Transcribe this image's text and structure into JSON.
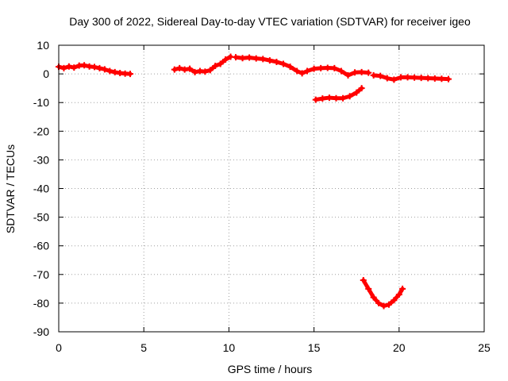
{
  "chart_data": {
    "type": "scatter",
    "title": "Day 300 of 2022, Sidereal Day-to-day VTEC variation (SDTVAR) for receiver igeo",
    "xlabel": "GPS time / hours",
    "ylabel": "SDTVAR / TECUs",
    "xlim": [
      0,
      25
    ],
    "ylim": [
      -90,
      10
    ],
    "xticks": [
      0,
      5,
      10,
      15,
      20,
      25
    ],
    "yticks": [
      10,
      0,
      -10,
      -20,
      -30,
      -40,
      -50,
      -60,
      -70,
      -80,
      -90
    ],
    "grid": true,
    "marker": "+",
    "series": [
      {
        "name": "SDTVAR",
        "color": "#ff0000",
        "segments": [
          {
            "x": [
              0.0,
              0.3,
              0.6,
              0.9,
              1.2,
              1.5,
              1.8,
              2.1,
              2.4,
              2.7,
              3.0,
              3.3,
              3.6,
              3.9,
              4.2
            ],
            "y": [
              2.5,
              2.0,
              2.6,
              2.2,
              2.9,
              3.0,
              2.6,
              2.4,
              2.0,
              1.6,
              1.0,
              0.6,
              0.3,
              0.1,
              0.0
            ]
          },
          {
            "x": [
              6.8,
              7.1,
              7.4,
              7.7,
              8.0,
              8.3,
              8.6,
              8.9,
              9.2,
              9.5,
              9.8,
              10.1
            ],
            "y": [
              1.5,
              2.0,
              1.5,
              1.8,
              0.6,
              1.0,
              0.8,
              1.3,
              2.8,
              3.5,
              5.0,
              6.0
            ]
          },
          {
            "x": [
              10.4,
              10.8,
              11.2,
              11.6,
              12.0,
              12.4,
              12.8,
              13.2,
              13.6,
              14.0,
              14.3,
              14.6,
              15.0,
              15.4,
              15.8,
              16.2,
              16.6,
              17.0,
              17.4,
              17.8,
              18.2
            ],
            "y": [
              5.8,
              5.5,
              5.7,
              5.4,
              5.2,
              4.7,
              4.2,
              3.5,
              2.5,
              1.0,
              0.2,
              1.0,
              1.8,
              2.0,
              2.1,
              2.0,
              1.0,
              -0.5,
              0.5,
              0.6,
              0.4
            ]
          },
          {
            "x": [
              18.5,
              18.9,
              19.3,
              19.7,
              20.1,
              20.5,
              20.9,
              21.3,
              21.7,
              22.1,
              22.5,
              22.9
            ],
            "y": [
              -0.5,
              -0.7,
              -1.5,
              -2.0,
              -1.2,
              -1.2,
              -1.3,
              -1.4,
              -1.5,
              -1.6,
              -1.7,
              -1.8
            ]
          },
          {
            "x": [
              15.1,
              15.5,
              15.9,
              16.3,
              16.7,
              17.1,
              17.5,
              17.8
            ],
            "y": [
              -9.0,
              -8.6,
              -8.3,
              -8.5,
              -8.5,
              -7.8,
              -6.5,
              -5.0
            ]
          },
          {
            "x": [
              17.9,
              18.2,
              18.5,
              18.8,
              19.1,
              19.4,
              19.7,
              20.0,
              20.2
            ],
            "y": [
              -72.0,
              -75.0,
              -78.0,
              -80.0,
              -81.0,
              -80.5,
              -79.0,
              -77.0,
              -75.0
            ]
          }
        ]
      }
    ]
  }
}
